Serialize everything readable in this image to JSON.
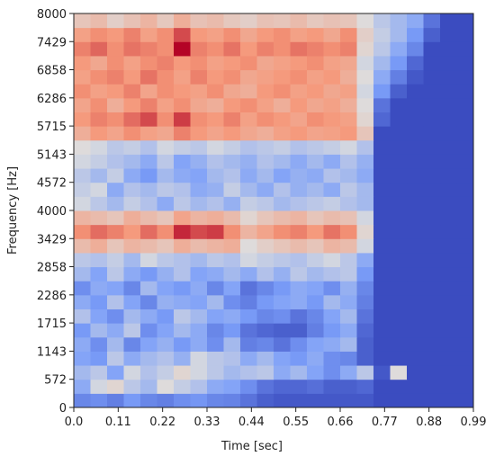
{
  "chart_data": {
    "type": "heatmap",
    "colormap": "coolwarm",
    "xlabel": "Time [sec]",
    "ylabel": "Frequency [Hz]",
    "xlim": [
      0,
      0.99
    ],
    "ylim": [
      0,
      8000
    ],
    "xticks": [
      {
        "value": 0,
        "label": "0.0"
      },
      0.11,
      0.22,
      0.33,
      0.44,
      0.55,
      0.66,
      0.77,
      0.88,
      0.99
    ],
    "yticks": [
      0,
      572,
      1143,
      1715,
      2286,
      2858,
      3429,
      4000,
      4572,
      5143,
      5715,
      6286,
      6858,
      7429,
      8000
    ],
    "z": [
      [
        20,
        22,
        18,
        25,
        20,
        18,
        22,
        24,
        20,
        19,
        15,
        10,
        8,
        8,
        8,
        8,
        8,
        8,
        5,
        5,
        5,
        5,
        5,
        5
      ],
      [
        30,
        45,
        50,
        40,
        35,
        48,
        42,
        38,
        30,
        28,
        22,
        15,
        12,
        12,
        14,
        10,
        10,
        12,
        5,
        5,
        5,
        5,
        5,
        5
      ],
      [
        35,
        40,
        28,
        45,
        38,
        42,
        50,
        45,
        40,
        35,
        38,
        40,
        30,
        35,
        28,
        22,
        30,
        40,
        8,
        48,
        5,
        5,
        5,
        5
      ],
      [
        28,
        25,
        40,
        30,
        35,
        38,
        32,
        45,
        40,
        38,
        30,
        35,
        28,
        25,
        30,
        22,
        20,
        10,
        5,
        5,
        5,
        5,
        5,
        5
      ],
      [
        30,
        22,
        35,
        20,
        28,
        32,
        25,
        30,
        22,
        35,
        18,
        20,
        15,
        22,
        28,
        30,
        35,
        10,
        5,
        5,
        5,
        5,
        5,
        5
      ],
      [
        25,
        35,
        30,
        40,
        22,
        28,
        35,
        30,
        20,
        25,
        15,
        12,
        10,
        10,
        18,
        25,
        30,
        12,
        5,
        5,
        5,
        5,
        5,
        5
      ],
      [
        38,
        28,
        22,
        35,
        30,
        25,
        40,
        35,
        28,
        30,
        25,
        20,
        22,
        15,
        20,
        28,
        35,
        15,
        5,
        5,
        5,
        5,
        5,
        5
      ],
      [
        30,
        25,
        38,
        28,
        20,
        32,
        30,
        28,
        35,
        22,
        18,
        25,
        28,
        30,
        25,
        35,
        30,
        18,
        5,
        5,
        5,
        5,
        5,
        5
      ],
      [
        22,
        30,
        28,
        20,
        35,
        28,
        25,
        30,
        20,
        28,
        15,
        20,
        25,
        30,
        28,
        22,
        32,
        20,
        5,
        5,
        5,
        5,
        5,
        5
      ],
      [
        35,
        28,
        40,
        30,
        25,
        32,
        38,
        28,
        30,
        35,
        30,
        38,
        32,
        40,
        35,
        38,
        40,
        25,
        5,
        5,
        5,
        5,
        5,
        5
      ],
      [
        40,
        38,
        42,
        35,
        45,
        40,
        38,
        35,
        40,
        38,
        45,
        42,
        40,
        38,
        42,
        45,
        40,
        30,
        5,
        5,
        5,
        5,
        5,
        5
      ],
      [
        58,
        62,
        55,
        60,
        58,
        55,
        62,
        58,
        60,
        62,
        48,
        52,
        55,
        58,
        55,
        60,
        58,
        45,
        5,
        5,
        5,
        5,
        5,
        5
      ],
      [
        70,
        75,
        72,
        68,
        75,
        70,
        85,
        80,
        82,
        70,
        60,
        65,
        70,
        72,
        68,
        74,
        70,
        50,
        5,
        5,
        5,
        5,
        5,
        5
      ],
      [
        60,
        58,
        55,
        62,
        58,
        55,
        65,
        60,
        62,
        58,
        50,
        55,
        58,
        60,
        55,
        58,
        56,
        45,
        5,
        5,
        5,
        5,
        5,
        5
      ],
      [
        45,
        40,
        35,
        42,
        38,
        30,
        40,
        35,
        38,
        32,
        42,
        40,
        35,
        38,
        40,
        42,
        38,
        35,
        5,
        5,
        5,
        5,
        5,
        5
      ],
      [
        42,
        45,
        30,
        38,
        35,
        40,
        38,
        30,
        32,
        42,
        35,
        30,
        38,
        32,
        35,
        30,
        40,
        35,
        5,
        5,
        5,
        5,
        5,
        5
      ],
      [
        40,
        35,
        42,
        30,
        25,
        35,
        30,
        28,
        35,
        38,
        30,
        35,
        28,
        32,
        30,
        38,
        35,
        30,
        5,
        5,
        5,
        5,
        5,
        5
      ],
      [
        45,
        42,
        38,
        35,
        30,
        40,
        28,
        32,
        38,
        35,
        32,
        38,
        35,
        30,
        35,
        30,
        38,
        32,
        5,
        5,
        5,
        5,
        5,
        5
      ],
      [
        48,
        45,
        40,
        42,
        38,
        45,
        42,
        40,
        45,
        42,
        38,
        40,
        42,
        38,
        40,
        42,
        45,
        38,
        5,
        5,
        5,
        5,
        5,
        5
      ],
      [
        62,
        68,
        65,
        70,
        66,
        64,
        72,
        68,
        65,
        68,
        64,
        62,
        66,
        68,
        65,
        66,
        68,
        55,
        5,
        5,
        5,
        5,
        5,
        5
      ],
      [
        68,
        72,
        70,
        75,
        80,
        70,
        82,
        70,
        68,
        72,
        66,
        70,
        68,
        65,
        70,
        68,
        66,
        50,
        12,
        5,
        5,
        5,
        5,
        5
      ],
      [
        65,
        70,
        62,
        68,
        72,
        66,
        70,
        64,
        62,
        68,
        70,
        66,
        62,
        68,
        64,
        66,
        62,
        48,
        15,
        5,
        5,
        5,
        5,
        5
      ],
      [
        70,
        66,
        68,
        72,
        65,
        70,
        68,
        66,
        70,
        64,
        62,
        68,
        70,
        66,
        68,
        64,
        66,
        45,
        25,
        10,
        5,
        5,
        5,
        5
      ],
      [
        66,
        70,
        72,
        68,
        74,
        70,
        66,
        72,
        68,
        70,
        64,
        66,
        68,
        70,
        66,
        68,
        62,
        48,
        30,
        18,
        8,
        5,
        5,
        5
      ],
      [
        68,
        64,
        70,
        66,
        70,
        72,
        68,
        70,
        66,
        68,
        70,
        64,
        66,
        68,
        70,
        66,
        64,
        45,
        35,
        25,
        12,
        5,
        5,
        5
      ],
      [
        72,
        76,
        70,
        74,
        72,
        70,
        90,
        72,
        70,
        74,
        68,
        72,
        70,
        74,
        72,
        70,
        72,
        50,
        40,
        30,
        20,
        5,
        5,
        5
      ],
      [
        66,
        70,
        68,
        72,
        66,
        70,
        80,
        68,
        66,
        70,
        64,
        68,
        70,
        66,
        68,
        64,
        70,
        52,
        42,
        35,
        25,
        10,
        5,
        5
      ],
      [
        55,
        58,
        52,
        56,
        60,
        54,
        62,
        56,
        58,
        54,
        52,
        56,
        55,
        58,
        54,
        56,
        55,
        48,
        40,
        35,
        30,
        15,
        5,
        5
      ]
    ]
  }
}
